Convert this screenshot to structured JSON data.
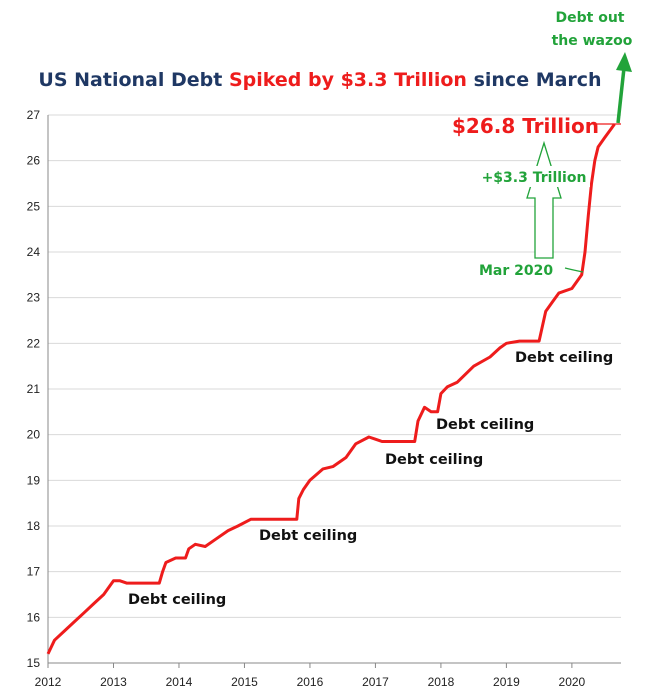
{
  "chart_data": {
    "type": "line",
    "title_parts": [
      {
        "text": "US National Debt ",
        "color": "#1f3864"
      },
      {
        "text": "Spiked by $3.3 Trillion",
        "color": "#ee1c1c"
      },
      {
        "text": " since March",
        "color": "#1f3864"
      }
    ],
    "xlabel": "",
    "ylabel": "",
    "xlim": [
      2012,
      2020.75
    ],
    "ylim": [
      15,
      27
    ],
    "x_ticks": [
      "2012",
      "2013",
      "2014",
      "2015",
      "2016",
      "2017",
      "2018",
      "2019",
      "2020"
    ],
    "y_ticks": [
      "15",
      "16",
      "17",
      "18",
      "19",
      "20",
      "21",
      "22",
      "23",
      "24",
      "25",
      "26",
      "27"
    ],
    "grid": "horizontal",
    "legend": "none",
    "series": [
      {
        "color": "#ee1c1c",
        "x": [
          2012.0,
          2012.1,
          2012.25,
          2012.4,
          2012.55,
          2012.7,
          2012.85,
          2013.0,
          2013.1,
          2013.2,
          2013.4,
          2013.7,
          2013.75,
          2013.8,
          2013.95,
          2014.1,
          2014.15,
          2014.25,
          2014.4,
          2014.55,
          2014.75,
          2014.9,
          2015.1,
          2015.5,
          2015.8,
          2015.83,
          2015.9,
          2016.0,
          2016.2,
          2016.35,
          2016.55,
          2016.7,
          2016.9,
          2017.0,
          2017.1,
          2017.3,
          2017.6,
          2017.65,
          2017.75,
          2017.85,
          2017.95,
          2018.0,
          2018.1,
          2018.25,
          2018.5,
          2018.75,
          2018.9,
          2019.0,
          2019.2,
          2019.5,
          2019.6,
          2019.7,
          2019.8,
          2020.0,
          2020.15,
          2020.2,
          2020.25,
          2020.3,
          2020.35,
          2020.4,
          2020.5,
          2020.6,
          2020.65
        ],
        "values": [
          15.2,
          15.5,
          15.7,
          15.9,
          16.1,
          16.3,
          16.5,
          16.8,
          16.8,
          16.75,
          16.75,
          16.75,
          17.0,
          17.2,
          17.3,
          17.3,
          17.5,
          17.6,
          17.55,
          17.7,
          17.9,
          18.0,
          18.15,
          18.15,
          18.15,
          18.6,
          18.8,
          19.0,
          19.25,
          19.3,
          19.5,
          19.8,
          19.95,
          19.9,
          19.85,
          19.85,
          19.85,
          20.3,
          20.6,
          20.5,
          20.5,
          20.9,
          21.05,
          21.15,
          21.5,
          21.7,
          21.9,
          22.0,
          22.05,
          22.05,
          22.7,
          22.9,
          23.1,
          23.2,
          23.5,
          24.0,
          24.8,
          25.5,
          26.0,
          26.3,
          26.5,
          26.7,
          26.8
        ]
      }
    ],
    "annotations": [
      {
        "text": "Debt ceiling",
        "x": 2013.2,
        "y": 16.4
      },
      {
        "text": "Debt ceiling",
        "x": 2015.15,
        "y": 17.8
      },
      {
        "text": "Debt ceiling",
        "x": 2017.1,
        "y": 19.45
      },
      {
        "text": "Debt ceiling",
        "x": 2017.88,
        "y": 20.2
      },
      {
        "text": "Debt ceiling",
        "x": 2020.1,
        "y": 21.62
      },
      {
        "text": "$26.8 Trillion",
        "x": 2020.15,
        "y": 26.8
      },
      {
        "text": "+$3.3 Trillion",
        "x": 2020.1,
        "y": 25.5
      },
      {
        "text": "Mar 2020",
        "x": 2019.8,
        "y": 23.6
      },
      {
        "text": "Debt out",
        "x": 2020.75,
        "y": 29.4
      },
      {
        "text": "the wazoo",
        "x": 2020.75,
        "y": 28.9
      }
    ]
  }
}
